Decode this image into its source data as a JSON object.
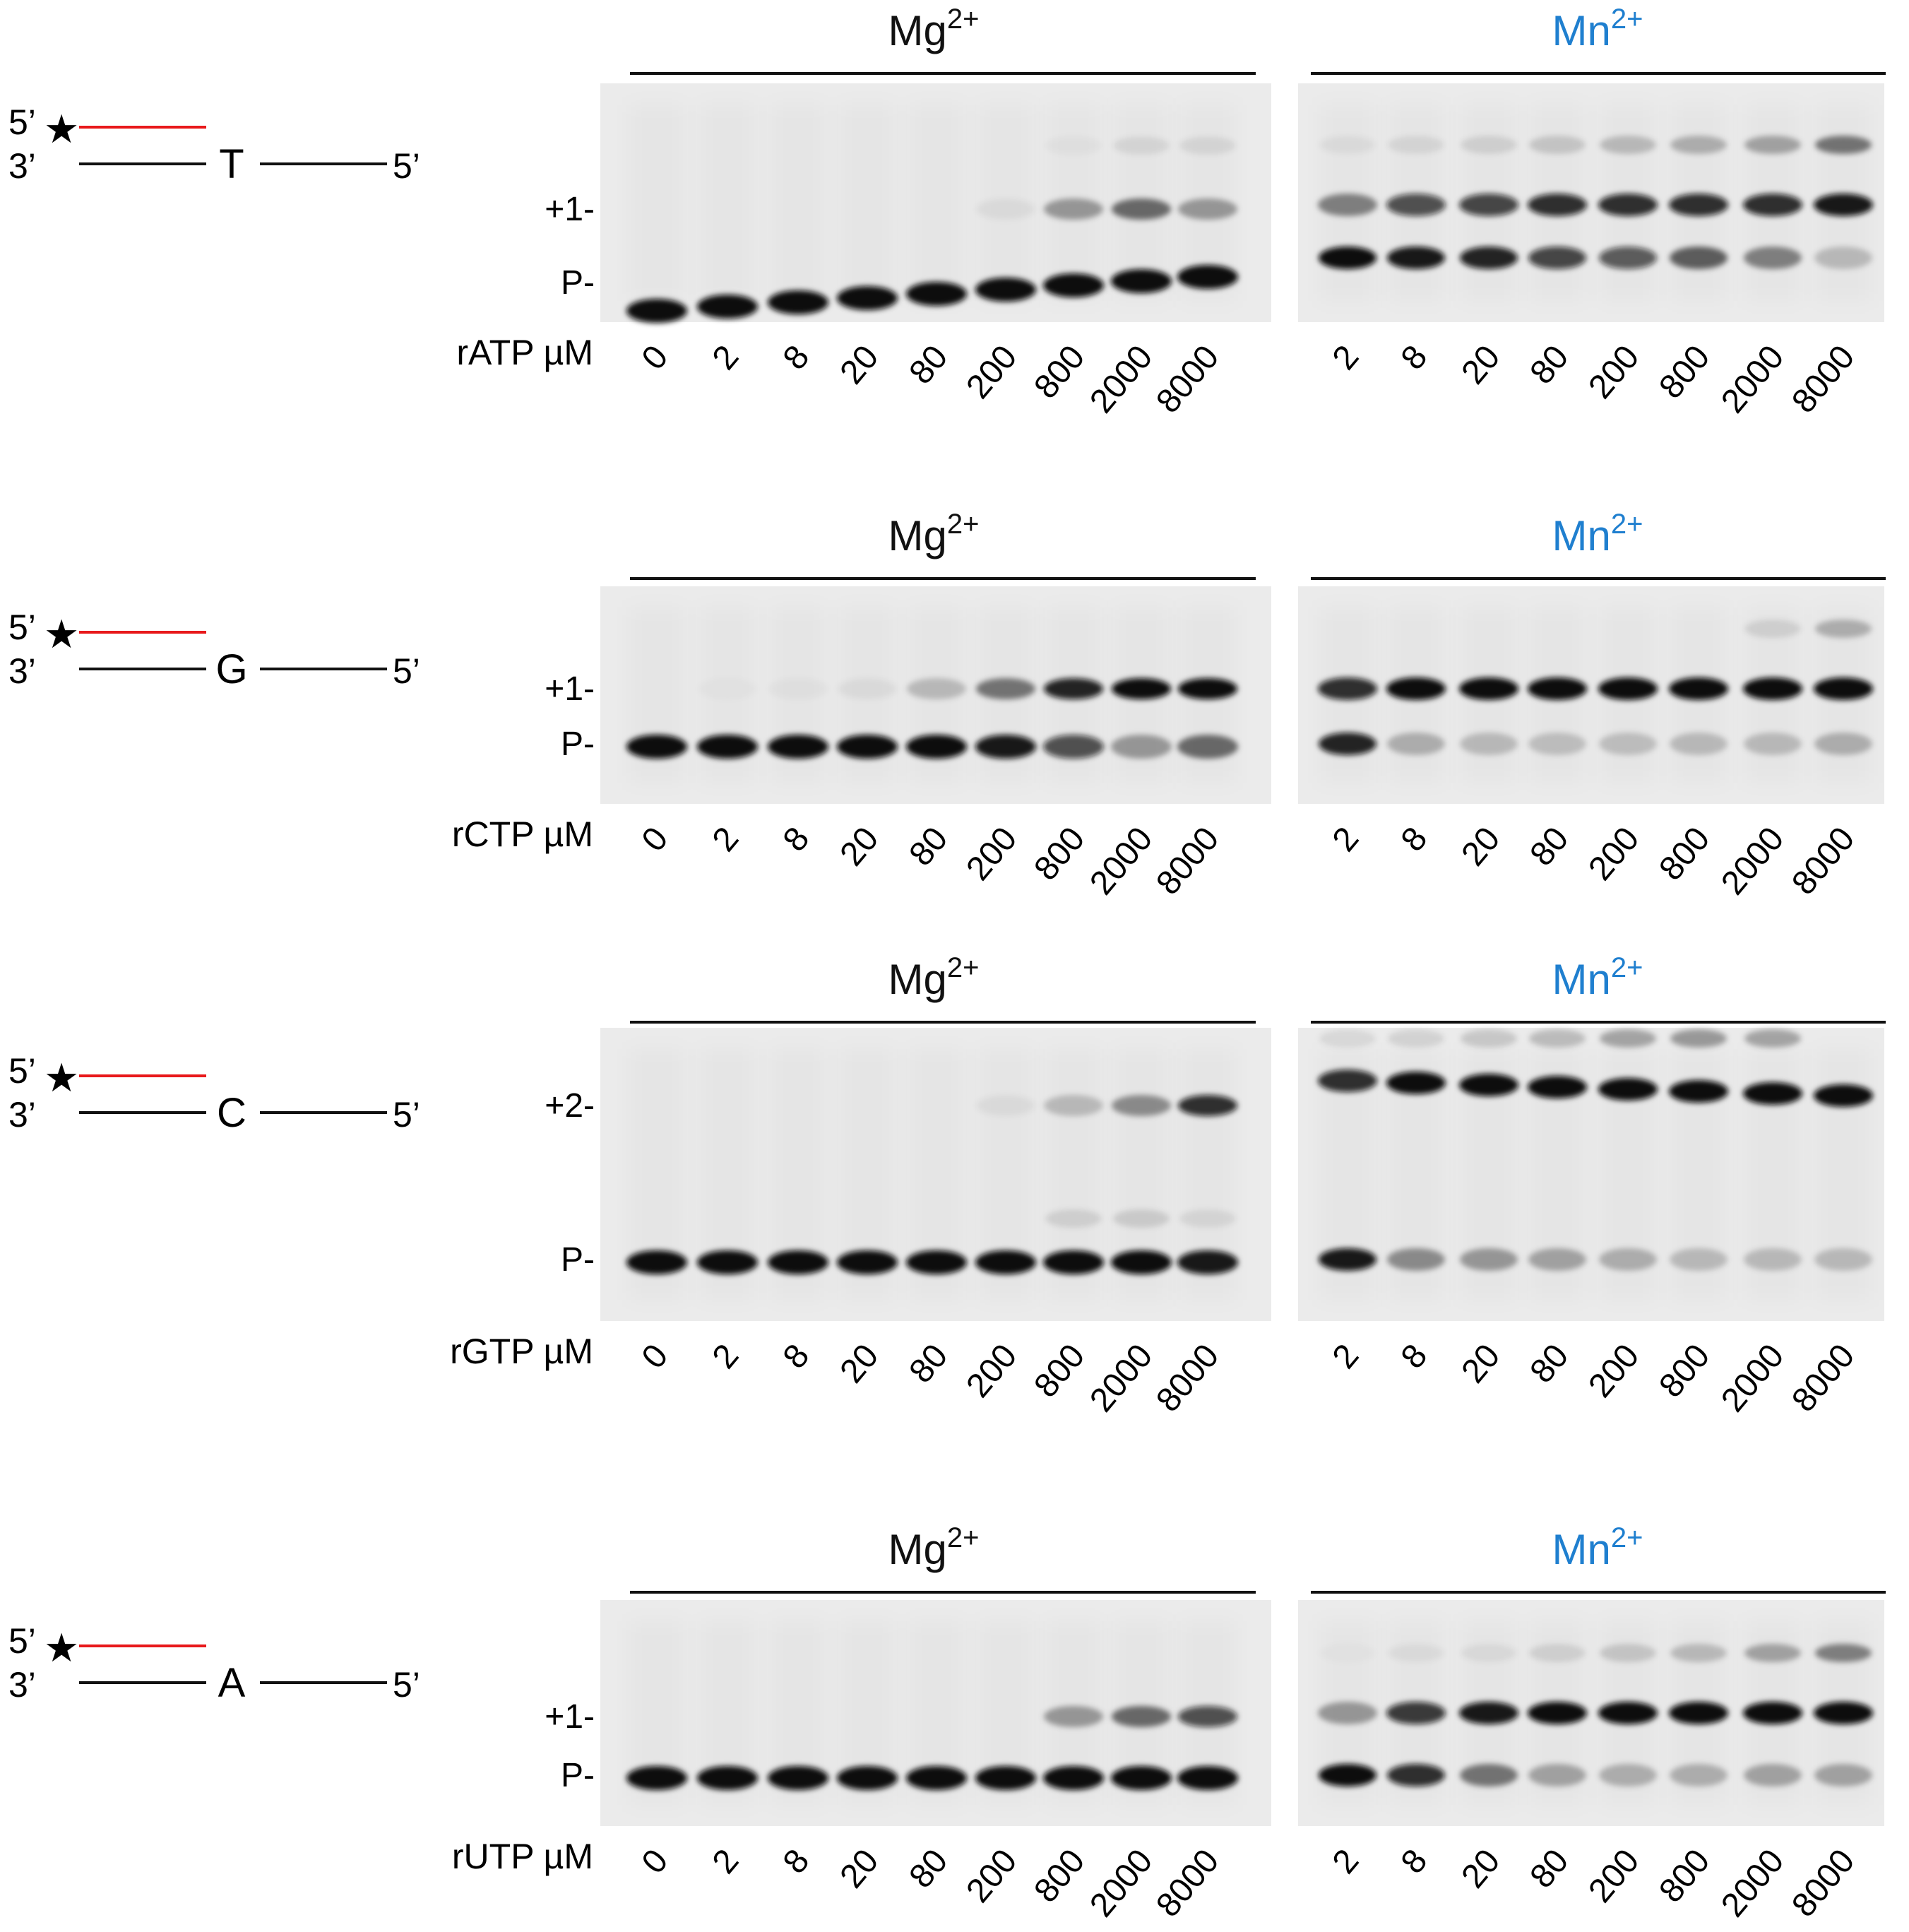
{
  "colors": {
    "template_line": "#111111",
    "primer_line": "#e8191b",
    "mn_label": "#1f7fcf",
    "gel_bg": "#ebebeb",
    "band": "#0a0a0a"
  },
  "panels": [
    {
      "template_base": "T",
      "nucleotide_label": "rATP µM",
      "mg_label": "Mg",
      "mn_label": "Mn",
      "ion_charge": "2+",
      "band_labels": [
        "+1-",
        "P-"
      ],
      "mg_concentrations": [
        "0",
        "2",
        "8",
        "20",
        "80",
        "200",
        "800",
        "2000",
        "8000"
      ],
      "mn_concentrations": [
        "2",
        "8",
        "20",
        "80",
        "200",
        "800",
        "2000",
        "8000"
      ]
    },
    {
      "template_base": "G",
      "nucleotide_label": "rCTP µM",
      "mg_label": "Mg",
      "mn_label": "Mn",
      "ion_charge": "2+",
      "band_labels": [
        "+1-",
        "P-"
      ],
      "mg_concentrations": [
        "0",
        "2",
        "8",
        "20",
        "80",
        "200",
        "800",
        "2000",
        "8000"
      ],
      "mn_concentrations": [
        "2",
        "8",
        "20",
        "80",
        "200",
        "800",
        "2000",
        "8000"
      ]
    },
    {
      "template_base": "C",
      "nucleotide_label": "rGTP µM",
      "mg_label": "Mg",
      "mn_label": "Mn",
      "ion_charge": "2+",
      "band_labels": [
        "+2-",
        "P-"
      ],
      "mg_concentrations": [
        "0",
        "2",
        "8",
        "20",
        "80",
        "200",
        "800",
        "2000",
        "8000"
      ],
      "mn_concentrations": [
        "2",
        "8",
        "20",
        "80",
        "200",
        "800",
        "2000",
        "8000"
      ]
    },
    {
      "template_base": "A",
      "nucleotide_label": "rUTP µM",
      "mg_label": "Mg",
      "mn_label": "Mn",
      "ion_charge": "2+",
      "band_labels": [
        "+1-",
        "P-"
      ],
      "mg_concentrations": [
        "0",
        "2",
        "8",
        "20",
        "80",
        "200",
        "800",
        "2000",
        "8000"
      ],
      "mn_concentrations": [
        "2",
        "8",
        "20",
        "80",
        "200",
        "800",
        "2000",
        "8000"
      ]
    }
  ],
  "strand_labels": {
    "five_prime": "5’",
    "three_prime": "3’"
  }
}
